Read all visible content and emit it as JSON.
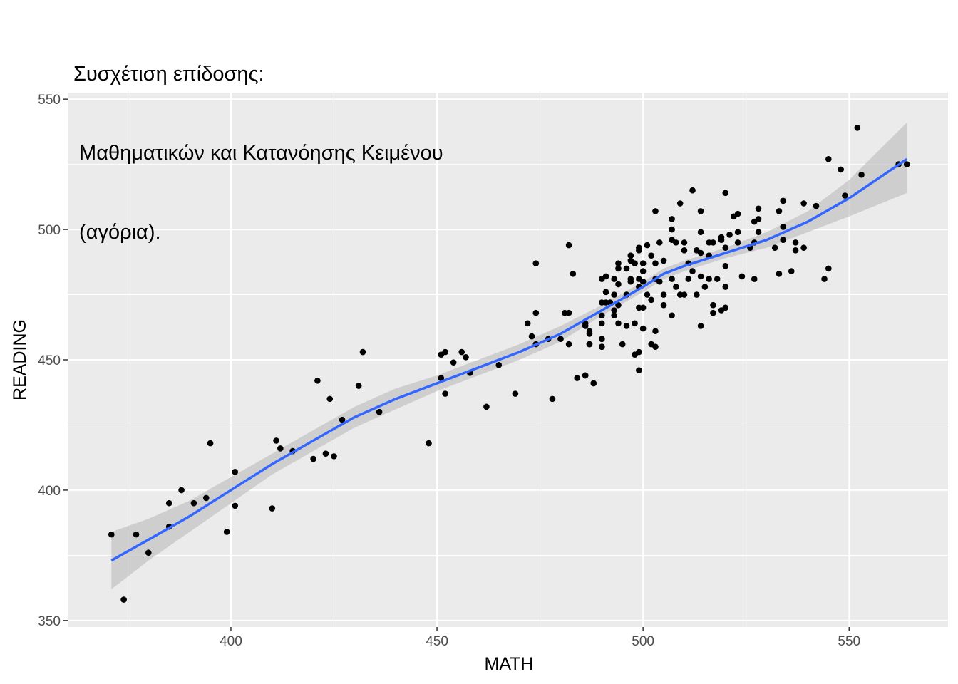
{
  "chart_data": {
    "type": "scatter",
    "title_lines": [
      "Συσχέτιση επίδοσης:",
      " Μαθηματικών και Κατανόησης Κειμένου",
      " (αγόρια)."
    ],
    "xlabel": "MATH",
    "ylabel": "READING",
    "xlim": [
      360.4,
      574
    ],
    "ylim": [
      347.5,
      552.5
    ],
    "xticks": [
      400,
      450,
      500,
      550
    ],
    "yticks": [
      350,
      400,
      450,
      500,
      550
    ],
    "grid": true,
    "colors": {
      "panel": "#EBEBEB",
      "grid": "#FFFFFF",
      "points": "#000000",
      "smooth": "#3366FF",
      "ribbon": "#BEBEBE"
    },
    "points": [
      [
        371,
        383
      ],
      [
        374,
        358
      ],
      [
        377,
        383
      ],
      [
        380,
        376
      ],
      [
        385,
        395
      ],
      [
        385,
        386
      ],
      [
        388,
        400
      ],
      [
        391,
        395
      ],
      [
        394,
        397
      ],
      [
        395,
        418
      ],
      [
        399,
        384
      ],
      [
        401,
        394
      ],
      [
        401,
        407
      ],
      [
        410,
        393
      ],
      [
        411,
        419
      ],
      [
        412,
        416
      ],
      [
        415,
        415
      ],
      [
        420,
        412
      ],
      [
        421,
        442
      ],
      [
        423,
        414
      ],
      [
        424,
        435
      ],
      [
        425,
        413
      ],
      [
        427,
        427
      ],
      [
        431,
        440
      ],
      [
        432,
        453
      ],
      [
        436,
        430
      ],
      [
        448,
        418
      ],
      [
        451,
        452
      ],
      [
        452,
        453
      ],
      [
        452,
        437
      ],
      [
        451,
        443
      ],
      [
        454,
        449
      ],
      [
        456,
        453
      ],
      [
        457,
        451
      ],
      [
        458,
        445
      ],
      [
        462,
        432
      ],
      [
        465,
        448
      ],
      [
        469,
        437
      ],
      [
        472,
        464
      ],
      [
        473,
        459
      ],
      [
        474,
        468
      ],
      [
        474,
        487
      ],
      [
        474,
        456
      ],
      [
        477,
        458
      ],
      [
        478,
        435
      ],
      [
        480,
        458
      ],
      [
        481,
        468
      ],
      [
        482,
        468
      ],
      [
        482,
        494
      ],
      [
        482,
        456
      ],
      [
        483,
        483
      ],
      [
        484,
        443
      ],
      [
        486,
        464
      ],
      [
        486,
        444
      ],
      [
        487,
        461
      ],
      [
        487,
        456
      ],
      [
        488,
        441
      ],
      [
        490,
        472
      ],
      [
        490,
        458
      ],
      [
        490,
        455
      ],
      [
        490,
        481
      ],
      [
        491,
        476
      ],
      [
        491,
        472
      ],
      [
        503,
        507
      ],
      [
        509,
        510
      ],
      [
        514,
        507
      ],
      [
        507,
        504
      ],
      [
        507,
        500
      ],
      [
        514,
        499
      ],
      [
        522,
        505
      ],
      [
        523,
        506
      ],
      [
        528,
        508
      ],
      [
        533,
        507
      ],
      [
        534,
        511
      ],
      [
        527,
        503
      ],
      [
        528,
        504
      ],
      [
        523,
        499
      ],
      [
        528,
        499
      ],
      [
        534,
        501
      ],
      [
        521,
        498
      ],
      [
        519,
        497
      ],
      [
        519,
        496
      ],
      [
        501,
        494
      ],
      [
        499,
        493
      ],
      [
        504,
        495
      ],
      [
        507,
        496
      ],
      [
        508,
        495
      ],
      [
        510,
        495
      ],
      [
        516,
        495
      ],
      [
        517,
        495
      ],
      [
        523,
        495
      ],
      [
        520,
        493
      ],
      [
        527,
        495
      ],
      [
        526,
        493
      ],
      [
        532,
        493
      ],
      [
        534,
        496
      ],
      [
        537,
        495
      ],
      [
        537,
        492
      ],
      [
        499,
        492
      ],
      [
        497,
        490
      ],
      [
        494,
        487
      ],
      [
        494,
        485
      ],
      [
        496,
        485
      ],
      [
        497,
        488
      ],
      [
        498,
        487
      ],
      [
        500,
        487
      ],
      [
        502,
        490
      ],
      [
        503,
        487
      ],
      [
        505,
        488
      ],
      [
        510,
        492
      ],
      [
        513,
        492
      ],
      [
        514,
        491
      ],
      [
        516,
        490
      ],
      [
        511,
        487
      ],
      [
        512,
        484
      ],
      [
        520,
        486
      ],
      [
        491,
        482
      ],
      [
        493,
        481
      ],
      [
        494,
        479
      ],
      [
        497,
        481
      ],
      [
        497,
        480
      ],
      [
        500,
        484
      ],
      [
        499,
        481
      ],
      [
        500,
        480
      ],
      [
        503,
        481
      ],
      [
        504,
        480
      ],
      [
        507,
        481
      ],
      [
        511,
        481
      ],
      [
        514,
        482
      ],
      [
        516,
        481
      ],
      [
        518,
        481
      ],
      [
        524,
        482
      ],
      [
        527,
        481
      ],
      [
        533,
        483
      ],
      [
        536,
        484
      ],
      [
        491,
        476
      ],
      [
        493,
        475
      ],
      [
        492,
        472
      ],
      [
        493,
        469
      ],
      [
        494,
        471
      ],
      [
        493,
        467
      ],
      [
        490,
        467
      ],
      [
        490,
        464
      ],
      [
        494,
        464
      ],
      [
        496,
        463
      ],
      [
        498,
        464
      ],
      [
        500,
        462
      ],
      [
        499,
        470
      ],
      [
        500,
        470
      ],
      [
        496,
        475
      ],
      [
        499,
        478
      ],
      [
        501,
        475
      ],
      [
        502,
        473
      ],
      [
        505,
        475
      ],
      [
        505,
        471
      ],
      [
        507,
        467
      ],
      [
        508,
        478
      ],
      [
        509,
        475
      ],
      [
        510,
        475
      ],
      [
        513,
        475
      ],
      [
        515,
        478
      ],
      [
        520,
        478
      ],
      [
        514,
        463
      ],
      [
        517,
        471
      ],
      [
        517,
        468
      ],
      [
        519,
        469
      ],
      [
        520,
        470
      ],
      [
        487,
        460
      ],
      [
        487,
        456
      ],
      [
        490,
        458
      ],
      [
        490,
        455
      ],
      [
        495,
        456
      ],
      [
        499,
        446
      ],
      [
        498,
        452
      ],
      [
        499,
        453
      ],
      [
        502,
        456
      ],
      [
        503,
        455
      ],
      [
        503,
        461
      ],
      [
        486,
        444
      ],
      [
        488,
        441
      ],
      [
        486,
        463
      ],
      [
        512,
        515
      ],
      [
        520,
        514
      ],
      [
        539,
        510
      ],
      [
        539,
        493
      ],
      [
        542,
        509
      ],
      [
        544,
        481
      ],
      [
        545,
        485
      ],
      [
        545,
        527
      ],
      [
        548,
        523
      ],
      [
        549,
        513
      ],
      [
        552,
        539
      ],
      [
        553,
        521
      ],
      [
        562,
        525
      ],
      [
        564,
        525
      ]
    ],
    "smooth": {
      "x": [
        371,
        380,
        390,
        400,
        410,
        420,
        430,
        440,
        450,
        460,
        470,
        480,
        490,
        500,
        505,
        510,
        520,
        530,
        540,
        550,
        564
      ],
      "y": [
        373,
        381,
        390,
        400,
        410,
        419,
        428,
        435,
        441,
        447,
        453,
        460,
        469,
        478,
        483,
        486,
        491,
        496,
        503,
        512,
        527
      ],
      "upper": [
        384,
        389,
        396,
        405,
        414,
        423,
        432,
        439,
        444,
        450,
        456,
        463,
        471,
        480,
        485,
        488,
        493,
        499,
        507,
        519,
        541
      ],
      "lower": [
        362,
        373,
        384,
        395,
        406,
        415,
        424,
        431,
        438,
        444,
        450,
        457,
        467,
        476,
        481,
        484,
        489,
        493,
        499,
        505,
        514
      ]
    }
  }
}
